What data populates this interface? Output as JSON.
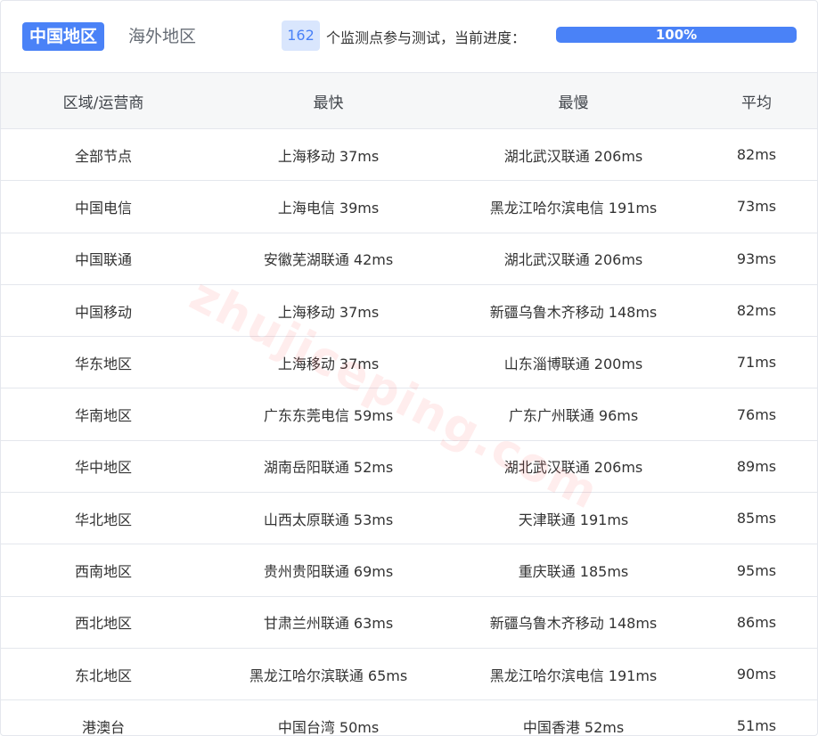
{
  "tabs": [
    {
      "label": "中国地区",
      "active": true
    },
    {
      "label": "海外地区",
      "active": false
    }
  ],
  "progress": {
    "count": "162",
    "text": "个监测点参与测试，当前进度：",
    "percent_label": "100%",
    "percent": 100
  },
  "colors": {
    "accent": "#4a82f7"
  },
  "watermark": "zhujiceping.com",
  "table": {
    "headers": [
      "区域/运营商",
      "最快",
      "最慢",
      "平均"
    ],
    "rows": [
      [
        "全部节点",
        "上海移动 37ms",
        "湖北武汉联通 206ms",
        "82ms"
      ],
      [
        "中国电信",
        "上海电信 39ms",
        "黑龙江哈尔滨电信 191ms",
        "73ms"
      ],
      [
        "中国联通",
        "安徽芜湖联通 42ms",
        "湖北武汉联通 206ms",
        "93ms"
      ],
      [
        "中国移动",
        "上海移动 37ms",
        "新疆乌鲁木齐移动 148ms",
        "82ms"
      ],
      [
        "华东地区",
        "上海移动 37ms",
        "山东淄博联通 200ms",
        "71ms"
      ],
      [
        "华南地区",
        "广东东莞电信 59ms",
        "广东广州联通 96ms",
        "76ms"
      ],
      [
        "华中地区",
        "湖南岳阳联通 52ms",
        "湖北武汉联通 206ms",
        "89ms"
      ],
      [
        "华北地区",
        "山西太原联通 53ms",
        "天津联通 191ms",
        "85ms"
      ],
      [
        "西南地区",
        "贵州贵阳联通 69ms",
        "重庆联通 185ms",
        "95ms"
      ],
      [
        "西北地区",
        "甘肃兰州联通 63ms",
        "新疆乌鲁木齐移动 148ms",
        "86ms"
      ],
      [
        "东北地区",
        "黑龙江哈尔滨联通 65ms",
        "黑龙江哈尔滨电信 191ms",
        "90ms"
      ],
      [
        "港澳台",
        "中国台湾 50ms",
        "中国香港 52ms",
        "51ms"
      ]
    ]
  }
}
